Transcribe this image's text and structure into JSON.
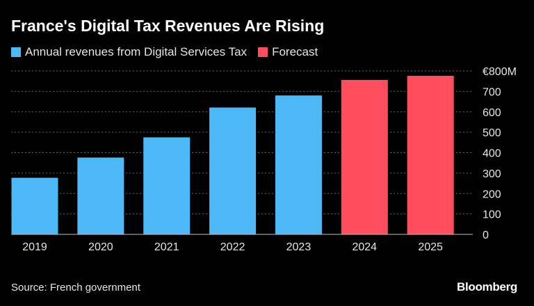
{
  "colors": {
    "background": "#000000",
    "actual": "#4cb8f5",
    "forecast": "#ff4d5e",
    "text": "#e6e6e6",
    "grid": "#666666"
  },
  "chart_data": {
    "type": "bar",
    "title": "France's Digital Tax Revenues Are Rising",
    "legend": [
      {
        "label": "Annual revenues from Digital Services Tax",
        "color": "#4cb8f5"
      },
      {
        "label": "Forecast",
        "color": "#ff4d5e"
      }
    ],
    "categories": [
      "2019",
      "2020",
      "2021",
      "2022",
      "2023",
      "2024",
      "2025"
    ],
    "values": [
      277,
      376,
      475,
      621,
      680,
      756,
      776
    ],
    "forecast": [
      false,
      false,
      false,
      false,
      false,
      true,
      true
    ],
    "ylim": [
      0,
      800
    ],
    "yticks": [
      0,
      100,
      200,
      300,
      400,
      500,
      600,
      700,
      800
    ],
    "ytick_labels": [
      "0",
      "100",
      "200",
      "300",
      "400",
      "500",
      "600",
      "700",
      "€800M"
    ],
    "ylabel": "",
    "xlabel": "",
    "grid": true,
    "yaxis_side": "right",
    "legend_position": "top-left"
  },
  "footer": {
    "source": "Source: French government",
    "brand": "Bloomberg"
  }
}
